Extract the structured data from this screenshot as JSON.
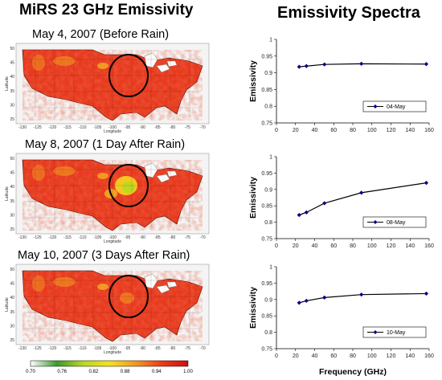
{
  "left_title": "MiRS 23 GHz Emissivity",
  "right_title": "Emissivity Spectra",
  "map_panels": [
    {
      "label": "May 4, 2007 (Before Rain)"
    },
    {
      "label": "May 8, 2007 (1 Day After Rain)"
    },
    {
      "label": "May 10, 2007 (3 Days After Rain)"
    }
  ],
  "map_axes": {
    "y_label": "Latitude",
    "x_label": "Longitude",
    "lon_ticks": [
      "-130",
      "-125",
      "-120",
      "-115",
      "-110",
      "-105",
      "-100",
      "-95",
      "-90",
      "-85",
      "-80",
      "-75",
      "-70"
    ],
    "lat_ticks": [
      "50",
      "45",
      "40",
      "35",
      "30",
      "25"
    ]
  },
  "colorbar": {
    "ticks": [
      "0.70",
      "0.76",
      "0.82",
      "0.88",
      "0.94",
      "1.00"
    ],
    "colors": [
      "#ffffff",
      "#3a9a2a",
      "#b8d820",
      "#f6e020",
      "#f29a20",
      "#ee3a18",
      "#d01010"
    ]
  },
  "colors": {
    "series": "#00008b",
    "axis": "#000000",
    "map_base": "#e8391d"
  },
  "chart_data": [
    {
      "type": "line",
      "title": "",
      "xlabel": "",
      "ylabel": "Emissivity",
      "xlim": [
        0,
        160
      ],
      "ylim": [
        0.75,
        1
      ],
      "x_ticks": [
        "0",
        "20",
        "40",
        "60",
        "80",
        "100",
        "120",
        "140",
        "160"
      ],
      "y_ticks": [
        "1",
        "0.95",
        "0.9",
        "0.85",
        "0.8",
        "0.75"
      ],
      "legend": "bottom-right",
      "series": [
        {
          "name": "04-May",
          "x": [
            23.8,
            31.4,
            50.3,
            89,
            157
          ],
          "values": [
            0.918,
            0.92,
            0.925,
            0.927,
            0.926
          ]
        }
      ]
    },
    {
      "type": "line",
      "title": "",
      "xlabel": "",
      "ylabel": "Emissivity",
      "xlim": [
        0,
        160
      ],
      "ylim": [
        0.75,
        1
      ],
      "x_ticks": [
        "0",
        "20",
        "40",
        "60",
        "80",
        "100",
        "120",
        "140",
        "160"
      ],
      "y_ticks": [
        "1",
        "0.95",
        "0.9",
        "0.85",
        "0.8",
        "0.75"
      ],
      "legend": "bottom-right",
      "series": [
        {
          "name": "08-May",
          "x": [
            23.8,
            31.4,
            50.3,
            89,
            157
          ],
          "values": [
            0.822,
            0.83,
            0.858,
            0.89,
            0.92
          ]
        }
      ]
    },
    {
      "type": "line",
      "title": "",
      "xlabel": "Frequency (GHz)",
      "ylabel": "Emissivity",
      "xlim": [
        0,
        160
      ],
      "ylim": [
        0.75,
        1
      ],
      "x_ticks": [
        "0",
        "20",
        "40",
        "60",
        "80",
        "100",
        "120",
        "140",
        "160"
      ],
      "y_ticks": [
        "1",
        "0.95",
        "0.9",
        "0.85",
        "0.8",
        "0.75"
      ],
      "legend": "bottom-right",
      "series": [
        {
          "name": "10-May",
          "x": [
            23.8,
            31.4,
            50.3,
            89,
            157
          ],
          "values": [
            0.89,
            0.896,
            0.906,
            0.915,
            0.918
          ]
        }
      ]
    }
  ]
}
